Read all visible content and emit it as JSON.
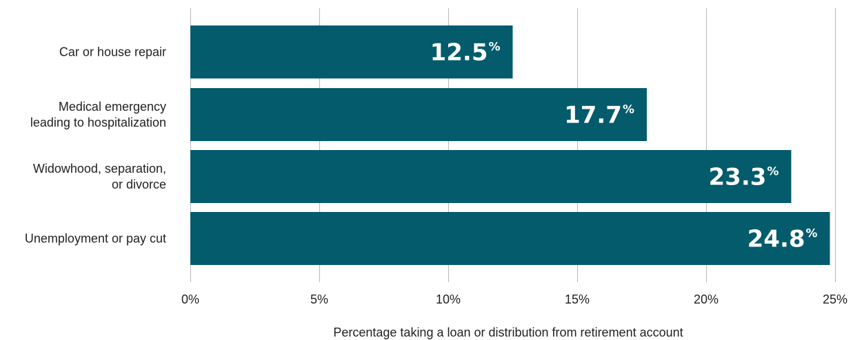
{
  "chart_data": {
    "type": "bar",
    "orientation": "horizontal",
    "categories": [
      "Car or house repair",
      "Medical emergency\nleading to hospitalization",
      "Widowhood, separation,\nor divorce",
      "Unemployment or pay cut"
    ],
    "values": [
      12.5,
      17.7,
      23.3,
      24.8
    ],
    "data_labels": [
      "12.5",
      "17.7",
      "23.3",
      "24.8"
    ],
    "data_label_suffix": "%",
    "xlabel": "Percentage taking a loan or distribution from retirement account",
    "ylabel": "",
    "xlim": [
      0,
      25
    ],
    "xticks": [
      0,
      5,
      10,
      15,
      20,
      25
    ],
    "xtick_labels": [
      "0%",
      "5%",
      "10%",
      "15%",
      "20%",
      "25%"
    ],
    "grid": "vertical",
    "legend": "none",
    "colors": {
      "bar": "#035b6c",
      "grid": "#b8b8b8",
      "text": "#222222",
      "label": "#ffffff"
    }
  }
}
